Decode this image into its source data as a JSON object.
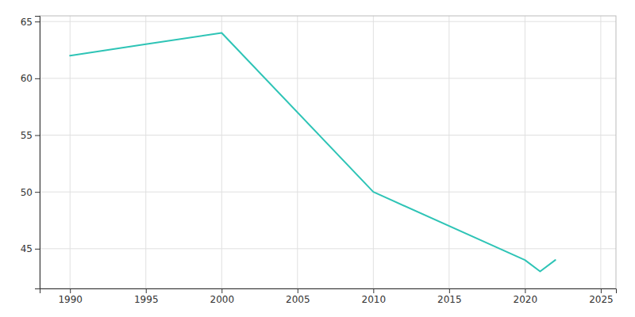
{
  "chart_data": {
    "type": "line",
    "x": [
      1990,
      1995,
      2000,
      2010,
      2020,
      2021,
      2022
    ],
    "values": [
      62,
      63,
      64,
      50,
      44,
      43,
      44
    ],
    "color": "#2ec4b6",
    "xlim": [
      1988,
      2026
    ],
    "ylim": [
      41.5,
      65.5
    ],
    "xticks": [
      1990,
      1995,
      2000,
      2005,
      2010,
      2015,
      2020,
      2025
    ],
    "yticks": [
      45,
      50,
      55,
      60,
      65
    ],
    "grid": true
  }
}
